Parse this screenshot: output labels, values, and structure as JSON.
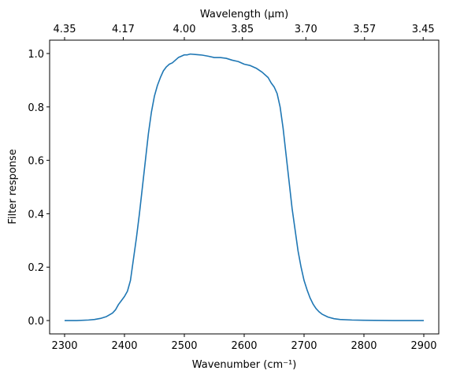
{
  "chart_data": {
    "type": "line",
    "xlabel": "Wavenumber (cm⁻¹)",
    "ylabel": "Filter response",
    "top_xlabel": "Wavelength (μm)",
    "xlim": [
      2275,
      2925
    ],
    "ylim": [
      -0.05,
      1.05
    ],
    "grid": false,
    "x_ticks": [
      2300,
      2400,
      2500,
      2600,
      2700,
      2800,
      2900
    ],
    "x_tick_labels": [
      "2300",
      "2400",
      "2500",
      "2600",
      "2700",
      "2800",
      "2900"
    ],
    "y_ticks": [
      0.0,
      0.2,
      0.4,
      0.6,
      0.8,
      1.0
    ],
    "y_tick_labels": [
      "0.0",
      "0.2",
      "0.4",
      "0.6",
      "0.8",
      "1.0"
    ],
    "top_ticks": [
      2300,
      2398,
      2500,
      2597,
      2703,
      2801,
      2899
    ],
    "top_tick_labels": [
      "4.35",
      "4.17",
      "4.00",
      "3.85",
      "3.70",
      "3.57",
      "3.45"
    ],
    "line_color": "#1f77b4",
    "series": [
      {
        "x": [
          2300,
          2320,
          2340,
          2350,
          2360,
          2370,
          2380,
          2385,
          2390,
          2395,
          2400,
          2405,
          2410,
          2415,
          2420,
          2425,
          2430,
          2435,
          2440,
          2445,
          2450,
          2455,
          2460,
          2465,
          2470,
          2475,
          2480,
          2485,
          2490,
          2495,
          2500,
          2505,
          2510,
          2520,
          2530,
          2540,
          2550,
          2560,
          2570,
          2580,
          2590,
          2600,
          2610,
          2620,
          2630,
          2640,
          2645,
          2650,
          2655,
          2660,
          2665,
          2670,
          2675,
          2680,
          2685,
          2690,
          2695,
          2700,
          2705,
          2710,
          2715,
          2720,
          2725,
          2730,
          2740,
          2750,
          2760,
          2780,
          2800,
          2850,
          2900
        ],
        "y": [
          0.0,
          0.0,
          0.002,
          0.004,
          0.008,
          0.015,
          0.028,
          0.04,
          0.06,
          0.075,
          0.09,
          0.11,
          0.15,
          0.23,
          0.31,
          0.4,
          0.5,
          0.6,
          0.7,
          0.78,
          0.84,
          0.88,
          0.91,
          0.935,
          0.95,
          0.96,
          0.965,
          0.975,
          0.985,
          0.99,
          0.995,
          0.995,
          0.998,
          0.996,
          0.994,
          0.99,
          0.985,
          0.985,
          0.982,
          0.975,
          0.97,
          0.96,
          0.955,
          0.945,
          0.93,
          0.91,
          0.89,
          0.875,
          0.85,
          0.8,
          0.72,
          0.62,
          0.52,
          0.42,
          0.34,
          0.26,
          0.2,
          0.15,
          0.115,
          0.085,
          0.062,
          0.045,
          0.033,
          0.024,
          0.013,
          0.007,
          0.004,
          0.002,
          0.001,
          0.0,
          0.0
        ]
      }
    ]
  }
}
